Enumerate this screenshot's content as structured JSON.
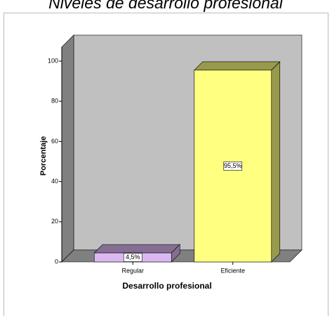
{
  "chart_data": {
    "type": "bar3d",
    "title": "Niveles de desarrollo profesional",
    "categories": [
      "Regular",
      "Eficiente"
    ],
    "values": [
      4.5,
      95.5
    ],
    "value_labels": [
      "4,5%",
      "95,5%"
    ],
    "colors": [
      "#dcb8f2",
      "#ffff80"
    ],
    "xlabel": "Desarrollo profesional",
    "ylabel": "Porcentaje",
    "ylim": [
      0,
      107
    ],
    "yticks": [
      0,
      20,
      40,
      60,
      80,
      100
    ],
    "grid": false
  }
}
